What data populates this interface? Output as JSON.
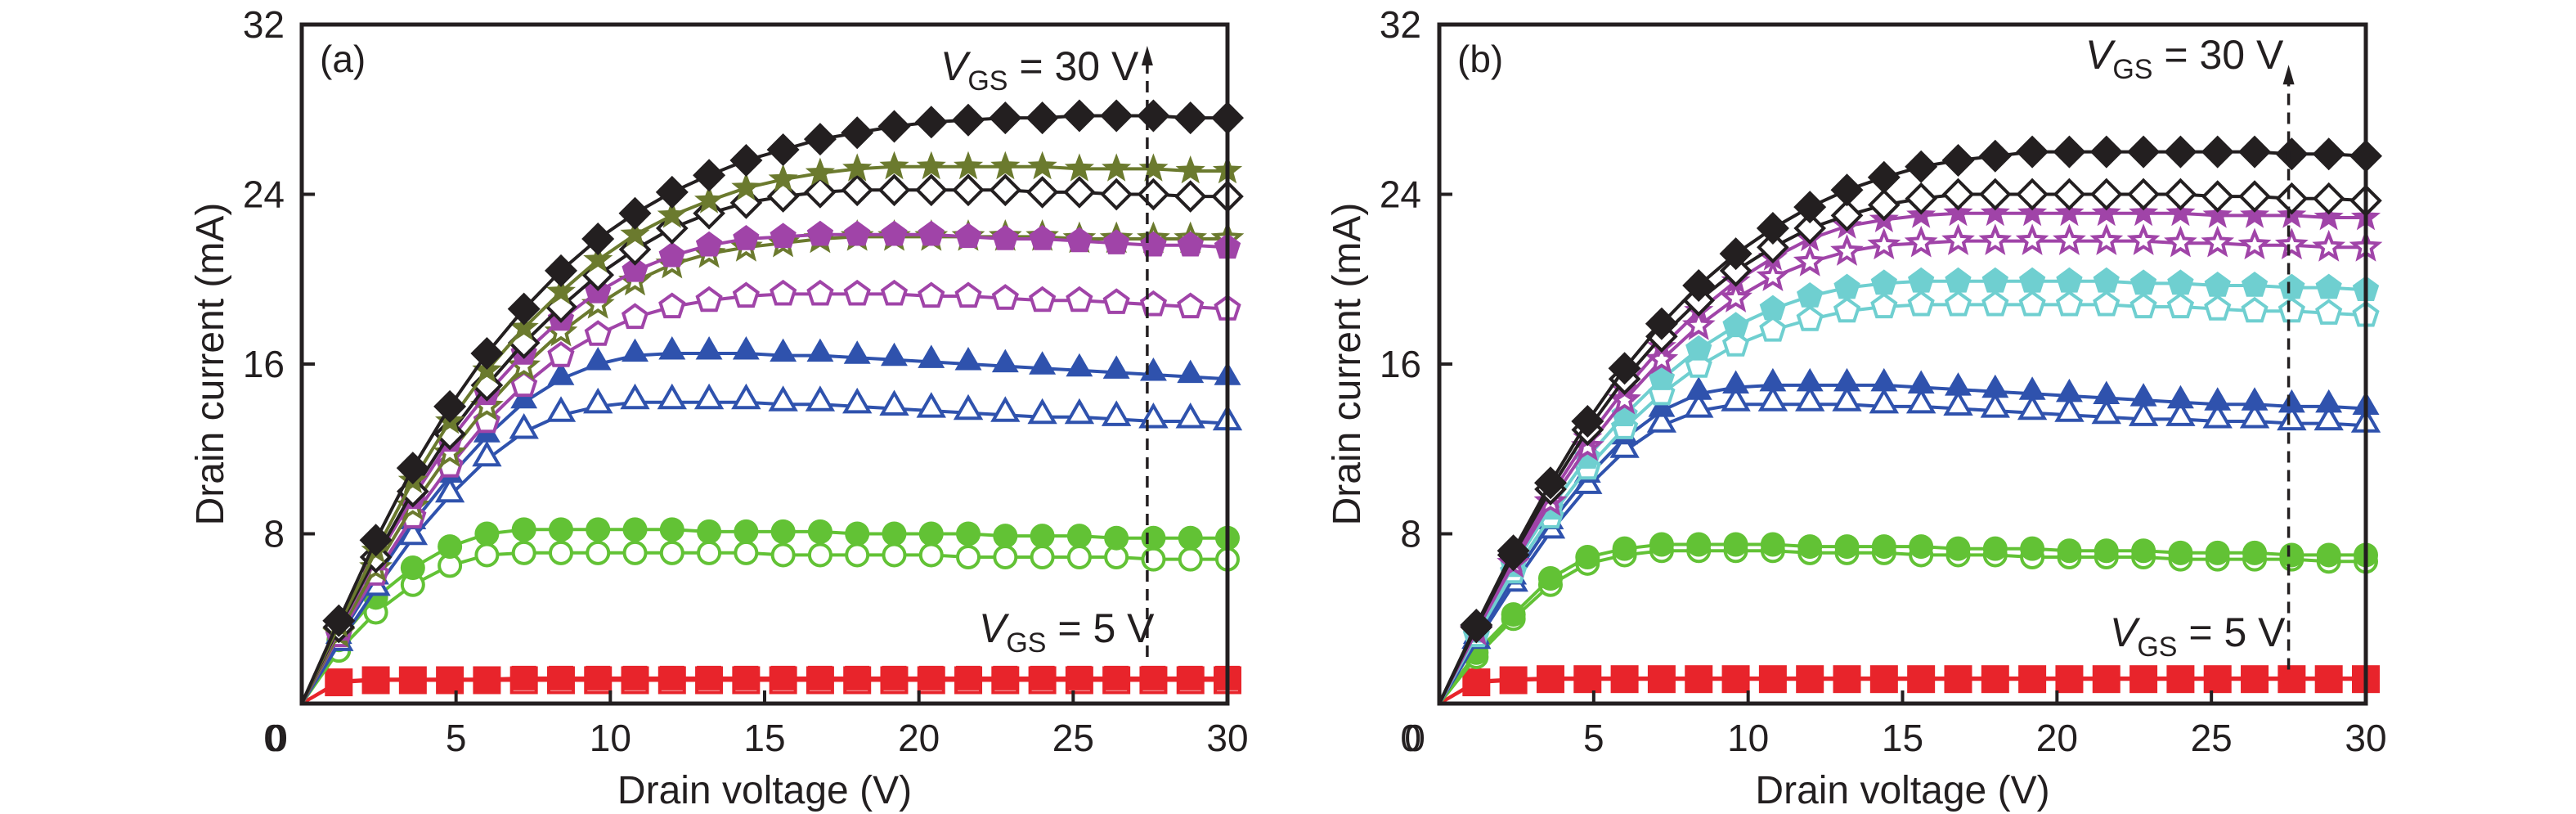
{
  "chart_data": [
    {
      "type": "line",
      "panel_label": "(a)",
      "xlabel": "Drain voltage (V)",
      "ylabel": "Drain current (mA)",
      "xlim": [
        0,
        30
      ],
      "ylim": [
        0,
        32
      ],
      "xticks": [
        0,
        5,
        10,
        15,
        20,
        25,
        30
      ],
      "yticks": [
        0,
        8,
        16,
        24,
        32
      ],
      "grid": false,
      "annotations": {
        "top_text_main": "V",
        "top_text_sub": "GS",
        "top_text_rest": " = 30 V",
        "bottom_text_main": "V",
        "bottom_text_sub": "GS",
        "bottom_text_rest": " = 5 V",
        "arrow_x": 27.4,
        "arrow_from_current": 2.2,
        "arrow_to_current": 31.0
      },
      "x": [
        0,
        1.2,
        2.4,
        3.6,
        4.8,
        6,
        7.2,
        8.4,
        9.6,
        10.8,
        12,
        13.2,
        14.4,
        15.6,
        16.8,
        18,
        19.2,
        20.4,
        21.6,
        22.8,
        24,
        25.2,
        26.4,
        27.6,
        28.8,
        30
      ],
      "series": [
        {
          "name": "VGS=30V filled diamond",
          "marker": "diamond",
          "filled": true,
          "color": "#231f20",
          "values": [
            0,
            3.9,
            7.7,
            11.1,
            14.0,
            16.5,
            18.6,
            20.4,
            21.9,
            23.1,
            24.1,
            24.9,
            25.6,
            26.1,
            26.6,
            26.9,
            27.2,
            27.4,
            27.5,
            27.6,
            27.6,
            27.7,
            27.7,
            27.7,
            27.6,
            27.6
          ]
        },
        {
          "name": "filled star",
          "marker": "star",
          "filled": true,
          "color": "#6b7a2e",
          "values": [
            0,
            3.7,
            7.2,
            10.5,
            13.3,
            15.7,
            17.7,
            19.4,
            20.9,
            22.1,
            23.0,
            23.7,
            24.3,
            24.7,
            25.0,
            25.2,
            25.3,
            25.3,
            25.3,
            25.3,
            25.3,
            25.2,
            25.2,
            25.2,
            25.1,
            25.1
          ]
        },
        {
          "name": "open diamond",
          "marker": "diamond",
          "filled": false,
          "color": "#231f20",
          "values": [
            0,
            3.6,
            6.9,
            10.0,
            12.7,
            15.0,
            17.0,
            18.7,
            20.2,
            21.4,
            22.4,
            23.1,
            23.6,
            23.9,
            24.1,
            24.2,
            24.2,
            24.2,
            24.2,
            24.2,
            24.1,
            24.1,
            24.0,
            24.0,
            23.9,
            23.9
          ]
        },
        {
          "name": "filled pentagon",
          "marker": "pentagon",
          "filled": true,
          "color": "#a044a8",
          "values": [
            0,
            3.5,
            6.8,
            9.7,
            12.4,
            14.6,
            16.5,
            18.1,
            19.4,
            20.4,
            21.1,
            21.6,
            21.9,
            22.0,
            22.1,
            22.1,
            22.1,
            22.1,
            22.0,
            21.9,
            21.9,
            21.8,
            21.7,
            21.6,
            21.6,
            21.5
          ]
        },
        {
          "name": "open star",
          "marker": "star",
          "filled": false,
          "color": "#6b7a2e",
          "values": [
            0,
            3.3,
            6.4,
            9.3,
            11.8,
            14.0,
            15.9,
            17.5,
            18.8,
            19.9,
            20.7,
            21.2,
            21.5,
            21.7,
            21.9,
            22.0,
            22.0,
            22.0,
            22.0,
            22.0,
            22.0,
            21.9,
            21.9,
            21.9,
            21.9,
            21.9
          ]
        },
        {
          "name": "open pentagon",
          "marker": "pentagon",
          "filled": false,
          "color": "#a044a8",
          "values": [
            0,
            3.2,
            6.1,
            8.8,
            11.2,
            13.3,
            15.0,
            16.4,
            17.4,
            18.2,
            18.7,
            19.0,
            19.2,
            19.3,
            19.3,
            19.3,
            19.3,
            19.2,
            19.2,
            19.1,
            19.0,
            19.0,
            18.9,
            18.8,
            18.7,
            18.6
          ]
        },
        {
          "name": "filled triangle",
          "marker": "triangle",
          "filled": true,
          "color": "#2f52ad",
          "values": [
            0,
            3.1,
            5.9,
            8.5,
            10.7,
            12.6,
            14.2,
            15.3,
            16.0,
            16.4,
            16.5,
            16.5,
            16.5,
            16.4,
            16.4,
            16.3,
            16.2,
            16.1,
            16.0,
            15.9,
            15.8,
            15.7,
            15.6,
            15.5,
            15.4,
            15.3
          ]
        },
        {
          "name": "open triangle",
          "marker": "triangle",
          "filled": false,
          "color": "#2f52ad",
          "values": [
            0,
            2.8,
            5.4,
            7.8,
            9.8,
            11.5,
            12.8,
            13.6,
            14.0,
            14.2,
            14.2,
            14.2,
            14.2,
            14.1,
            14.1,
            14.0,
            13.9,
            13.8,
            13.7,
            13.6,
            13.5,
            13.5,
            13.4,
            13.3,
            13.3,
            13.2
          ]
        },
        {
          "name": "filled circle",
          "marker": "circle",
          "filled": true,
          "color": "#62c235",
          "values": [
            0,
            3.0,
            5.0,
            6.4,
            7.4,
            8.0,
            8.2,
            8.2,
            8.2,
            8.2,
            8.2,
            8.1,
            8.1,
            8.1,
            8.1,
            8.0,
            8.0,
            8.0,
            8.0,
            7.9,
            7.9,
            7.9,
            7.8,
            7.8,
            7.8,
            7.8
          ]
        },
        {
          "name": "open circle",
          "marker": "circle",
          "filled": false,
          "color": "#62c235",
          "values": [
            0,
            2.5,
            4.3,
            5.6,
            6.5,
            7.0,
            7.1,
            7.1,
            7.1,
            7.1,
            7.1,
            7.1,
            7.1,
            7.0,
            7.0,
            7.0,
            7.0,
            7.0,
            6.9,
            6.9,
            6.9,
            6.9,
            6.9,
            6.8,
            6.8,
            6.8
          ]
        },
        {
          "name": "VGS=5V filled square",
          "marker": "square",
          "filled": true,
          "color": "#e8242b",
          "values": [
            0,
            1.05,
            1.15,
            1.15,
            1.15,
            1.15,
            1.2,
            1.2,
            1.2,
            1.2,
            1.2,
            1.2,
            1.2,
            1.2,
            1.2,
            1.2,
            1.2,
            1.2,
            1.2,
            1.2,
            1.2,
            1.2,
            1.2,
            1.2,
            1.2,
            1.2
          ]
        },
        {
          "name": "VGS=5V open square",
          "marker": "square",
          "filled": false,
          "color": "#e8242b",
          "values": [
            0,
            1.0,
            1.1,
            1.1,
            1.1,
            1.1,
            1.1,
            1.1,
            1.1,
            1.1,
            1.1,
            1.1,
            1.1,
            1.1,
            1.1,
            1.1,
            1.1,
            1.1,
            1.1,
            1.1,
            1.1,
            1.1,
            1.1,
            1.1,
            1.1,
            1.1
          ]
        }
      ]
    },
    {
      "type": "line",
      "panel_label": "(b)",
      "xlabel": "Drain voltage (V)",
      "ylabel": "Drain current (mA)",
      "xlim": [
        0,
        30
      ],
      "ylim": [
        0,
        32
      ],
      "xticks": [
        0,
        5,
        10,
        15,
        20,
        25,
        30
      ],
      "yticks": [
        0,
        8,
        16,
        24,
        32
      ],
      "grid": false,
      "annotations": {
        "top_text_main": "V",
        "top_text_sub": "GS",
        "top_text_rest": " = 30 V",
        "bottom_text_main": "V",
        "bottom_text_sub": "GS",
        "bottom_text_rest": " = 5 V",
        "arrow_x": 27.5,
        "arrow_from_current": 1.6,
        "arrow_to_current": 30.1
      },
      "x": [
        0,
        1.2,
        2.4,
        3.6,
        4.8,
        6,
        7.2,
        8.4,
        9.6,
        10.8,
        12,
        13.2,
        14.4,
        15.6,
        16.8,
        18,
        19.2,
        20.4,
        21.6,
        22.8,
        24,
        25.2,
        26.4,
        27.6,
        28.8,
        30
      ],
      "series": [
        {
          "name": "VGS=30V filled diamond",
          "marker": "diamond",
          "filled": true,
          "color": "#231f20",
          "values": [
            0,
            3.7,
            7.2,
            10.4,
            13.3,
            15.8,
            17.9,
            19.7,
            21.2,
            22.4,
            23.4,
            24.2,
            24.8,
            25.3,
            25.6,
            25.8,
            26.0,
            26.0,
            26.0,
            26.0,
            26.0,
            26.0,
            26.0,
            25.9,
            25.9,
            25.8
          ]
        },
        {
          "name": "open diamond",
          "marker": "diamond",
          "filled": false,
          "color": "#231f20",
          "values": [
            0,
            3.6,
            7.0,
            10.1,
            12.9,
            15.3,
            17.3,
            19.0,
            20.4,
            21.5,
            22.4,
            23.0,
            23.5,
            23.8,
            24.0,
            24.0,
            24.0,
            24.0,
            24.0,
            24.0,
            24.0,
            23.9,
            23.9,
            23.8,
            23.8,
            23.7
          ]
        },
        {
          "name": "filled star",
          "marker": "star",
          "filled": true,
          "color": "#a044a8",
          "values": [
            0,
            3.5,
            6.8,
            9.8,
            12.5,
            14.8,
            16.8,
            18.5,
            19.9,
            21.0,
            21.9,
            22.5,
            22.8,
            23.0,
            23.1,
            23.1,
            23.1,
            23.1,
            23.1,
            23.1,
            23.1,
            23.0,
            23.0,
            23.0,
            22.9,
            22.9
          ]
        },
        {
          "name": "open star",
          "marker": "star",
          "filled": false,
          "color": "#a044a8",
          "values": [
            0,
            3.4,
            6.6,
            9.5,
            12.1,
            14.3,
            16.2,
            17.8,
            19.1,
            20.1,
            20.8,
            21.3,
            21.6,
            21.7,
            21.8,
            21.8,
            21.8,
            21.8,
            21.8,
            21.8,
            21.7,
            21.7,
            21.6,
            21.6,
            21.5,
            21.5
          ]
        },
        {
          "name": "filled cyan pentagon",
          "marker": "pentagon",
          "filled": true,
          "color": "#6fcfd0",
          "values": [
            0,
            3.4,
            6.5,
            9.2,
            11.6,
            13.6,
            15.3,
            16.7,
            17.8,
            18.6,
            19.2,
            19.6,
            19.8,
            19.9,
            19.9,
            19.9,
            19.9,
            19.9,
            19.9,
            19.8,
            19.8,
            19.7,
            19.7,
            19.6,
            19.6,
            19.5
          ]
        },
        {
          "name": "open cyan pentagon",
          "marker": "pentagon",
          "filled": false,
          "color": "#6fcfd0",
          "values": [
            0,
            3.2,
            6.2,
            8.8,
            11.1,
            13.0,
            14.6,
            15.9,
            16.9,
            17.6,
            18.1,
            18.5,
            18.7,
            18.8,
            18.8,
            18.8,
            18.8,
            18.8,
            18.8,
            18.7,
            18.7,
            18.6,
            18.5,
            18.5,
            18.4,
            18.3
          ]
        },
        {
          "name": "filled triangle",
          "marker": "triangle",
          "filled": true,
          "color": "#2f52ad",
          "values": [
            0,
            3.1,
            5.9,
            8.5,
            10.7,
            12.5,
            13.8,
            14.6,
            14.9,
            15.0,
            15.0,
            15.0,
            15.0,
            14.9,
            14.8,
            14.7,
            14.6,
            14.5,
            14.4,
            14.3,
            14.2,
            14.1,
            14.1,
            14.0,
            14.0,
            13.9
          ]
        },
        {
          "name": "open triangle",
          "marker": "triangle",
          "filled": false,
          "color": "#2f52ad",
          "values": [
            0,
            2.9,
            5.6,
            8.1,
            10.2,
            11.9,
            13.1,
            13.8,
            14.1,
            14.1,
            14.1,
            14.1,
            14.0,
            14.0,
            13.9,
            13.8,
            13.7,
            13.6,
            13.5,
            13.4,
            13.4,
            13.3,
            13.3,
            13.2,
            13.2,
            13.1
          ]
        },
        {
          "name": "filled circle",
          "marker": "circle",
          "filled": true,
          "color": "#62c235",
          "values": [
            0,
            2.4,
            4.2,
            5.9,
            6.9,
            7.3,
            7.5,
            7.5,
            7.5,
            7.5,
            7.4,
            7.4,
            7.4,
            7.4,
            7.3,
            7.3,
            7.3,
            7.2,
            7.2,
            7.2,
            7.1,
            7.1,
            7.1,
            7.0,
            7.0,
            7.0
          ]
        },
        {
          "name": "open circle",
          "marker": "circle",
          "filled": false,
          "color": "#62c235",
          "values": [
            0,
            2.2,
            4.0,
            5.6,
            6.6,
            7.0,
            7.2,
            7.2,
            7.2,
            7.2,
            7.1,
            7.1,
            7.1,
            7.0,
            7.0,
            7.0,
            6.9,
            6.9,
            6.9,
            6.9,
            6.8,
            6.8,
            6.8,
            6.8,
            6.7,
            6.7
          ]
        },
        {
          "name": "VGS=5V filled square",
          "marker": "square",
          "filled": true,
          "color": "#e8242b",
          "values": [
            0,
            1.05,
            1.15,
            1.2,
            1.2,
            1.2,
            1.2,
            1.2,
            1.2,
            1.2,
            1.2,
            1.2,
            1.2,
            1.2,
            1.2,
            1.2,
            1.2,
            1.2,
            1.2,
            1.2,
            1.2,
            1.2,
            1.2,
            1.2,
            1.2,
            1.2
          ]
        },
        {
          "name": "VGS=5V open square",
          "marker": "square",
          "filled": false,
          "color": "#e8242b",
          "values": [
            0,
            1.0,
            1.1,
            1.15,
            1.15,
            1.15,
            1.15,
            1.15,
            1.15,
            1.15,
            1.15,
            1.15,
            1.15,
            1.15,
            1.15,
            1.15,
            1.15,
            1.15,
            1.15,
            1.15,
            1.15,
            1.15,
            1.15,
            1.15,
            1.15,
            1.15
          ]
        }
      ]
    }
  ]
}
